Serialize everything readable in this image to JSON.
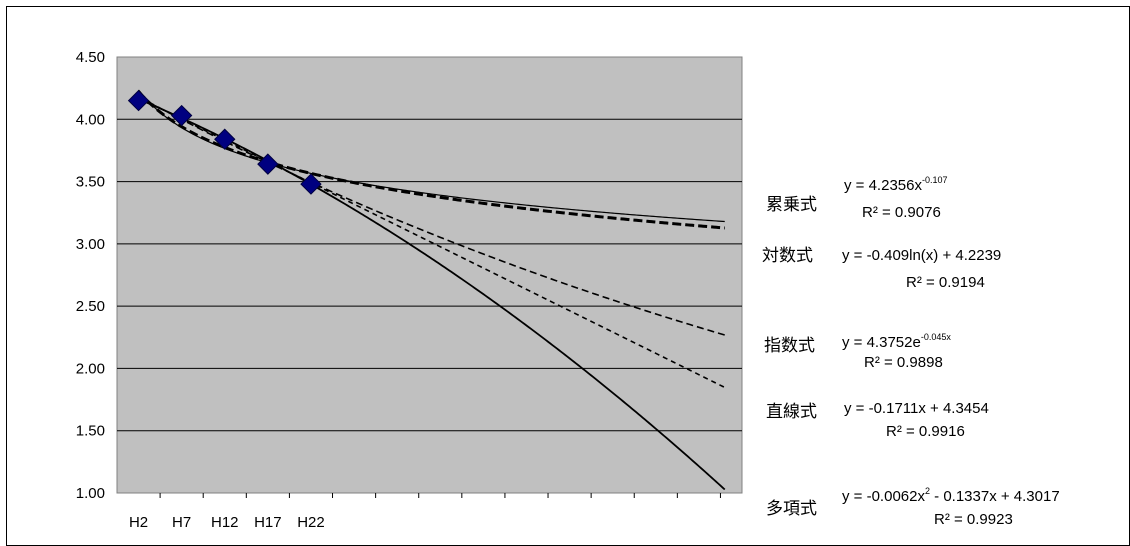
{
  "chart_data": {
    "type": "scatter",
    "categories": [
      "H2",
      "H7",
      "H12",
      "H17",
      "H22"
    ],
    "x": [
      1,
      2,
      3,
      4,
      5
    ],
    "values": [
      4.15,
      4.03,
      3.84,
      3.64,
      3.48
    ],
    "x_range": [
      0.5,
      15
    ],
    "ylim": [
      1.0,
      4.5
    ],
    "yticks": [
      "4.50",
      "4.00",
      "3.50",
      "3.00",
      "2.50",
      "2.00",
      "1.50",
      "1.00"
    ],
    "grid": true,
    "plot_background": "#c0c0c0",
    "marker_color": "#000080",
    "trendlines": [
      {
        "name": "累乗式",
        "kind": "power",
        "a": 4.2356,
        "b": -0.107,
        "equation": "y = 4.2356x",
        "exponent": "-0.107",
        "r2": "R² = 0.9076"
      },
      {
        "name": "対数式",
        "kind": "log",
        "a": -0.409,
        "b": 4.2239,
        "equation": "y = -0.409ln(x) + 4.2239",
        "r2": "R² = 0.9194"
      },
      {
        "name": "指数式",
        "kind": "exp",
        "a": 4.3752,
        "b": -0.045,
        "equation": "y = 4.3752e",
        "exponent": "-0.045x",
        "r2": "R² = 0.9898"
      },
      {
        "name": "直線式",
        "kind": "linear",
        "a": -0.1711,
        "b": 4.3454,
        "equation": "y = -0.1711x + 4.3454",
        "r2": "R² = 0.9916"
      },
      {
        "name": "多項式",
        "kind": "poly2",
        "a": -0.0062,
        "b": -0.1337,
        "c": 4.3017,
        "equation": "y = -0.0062x",
        "equation_rest": " - 0.1337x + 4.3017",
        "exponent": "2",
        "r2": "R² = 0.9923"
      }
    ]
  }
}
